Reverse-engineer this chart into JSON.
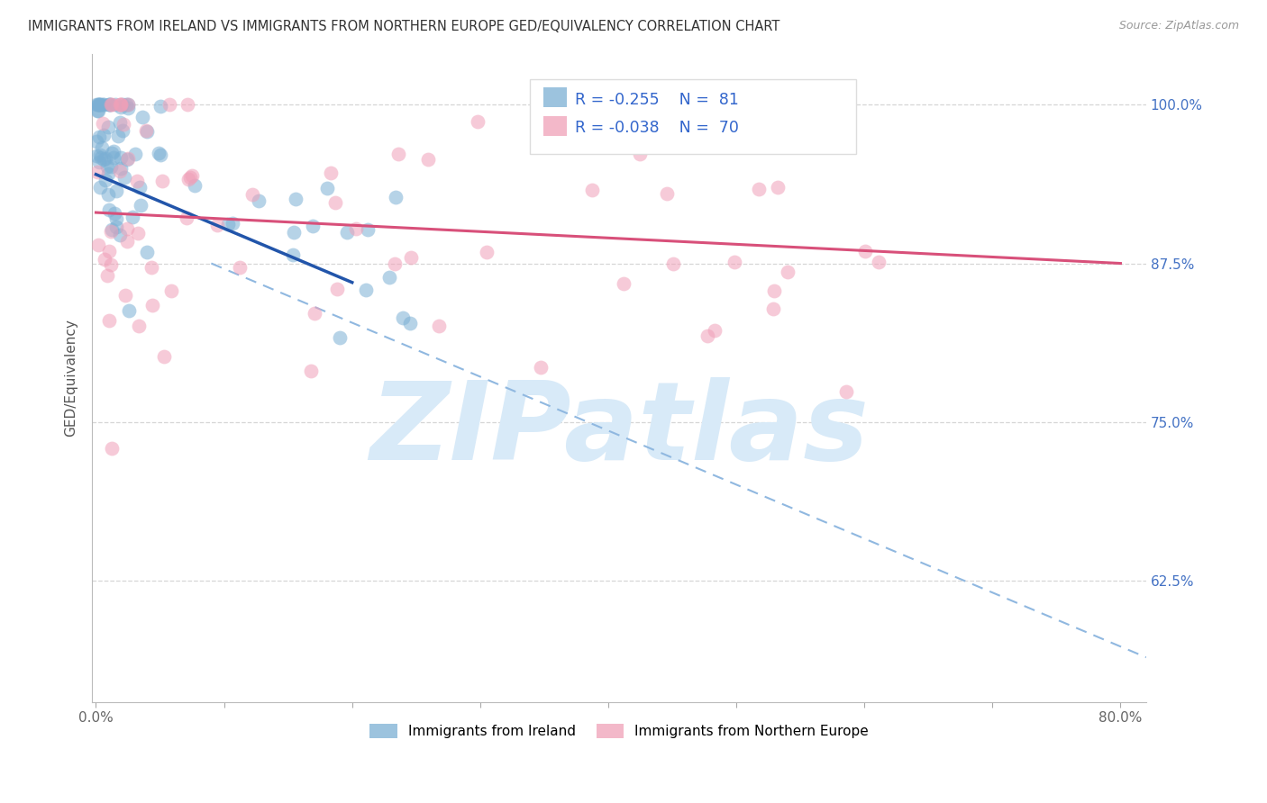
{
  "title": "IMMIGRANTS FROM IRELAND VS IMMIGRANTS FROM NORTHERN EUROPE GED/EQUIVALENCY CORRELATION CHART",
  "source": "Source: ZipAtlas.com",
  "ylabel": "GED/Equivalency",
  "y_ticks": [
    62.5,
    75.0,
    87.5,
    100.0
  ],
  "y_tick_labels": [
    "62.5%",
    "75.0%",
    "87.5%",
    "100.0%"
  ],
  "legend_R1": "R = -0.255",
  "legend_N1": "N =  81",
  "legend_R2": "R = -0.038",
  "legend_N2": "N =  70",
  "color_ireland": "#7bafd4",
  "color_northern_europe": "#f0a0b8",
  "color_ireland_line": "#2255aa",
  "color_northern_europe_line": "#d8507a",
  "color_dashed": "#90b8e0",
  "watermark_text": "ZIPatlas",
  "watermark_color": "#d8eaf8",
  "xlim_min": -0.3,
  "xlim_max": 82,
  "ylim_min": 53,
  "ylim_max": 104,
  "blue_line_x0": 0.0,
  "blue_line_y0": 94.5,
  "blue_line_x1": 20.0,
  "blue_line_y1": 86.0,
  "pink_line_x0": 0.0,
  "pink_line_y0": 91.5,
  "pink_line_x1": 80.0,
  "pink_line_y1": 87.5,
  "dashed_x0": 9.0,
  "dashed_y0": 87.5,
  "dashed_x1": 82.0,
  "dashed_y1": 56.5
}
